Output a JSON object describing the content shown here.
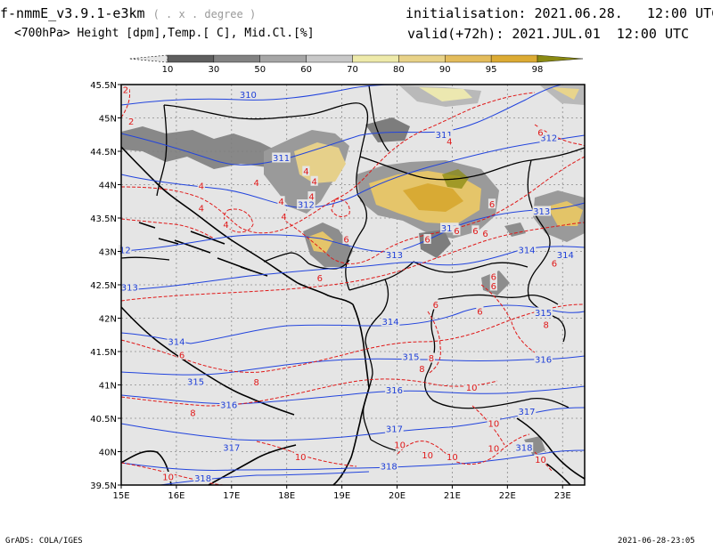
{
  "header": {
    "model": "f-nmmE_v3.9.1-e3km",
    "grid_note": "( . x . degree )",
    "fields": "<700hPa> Height [dpm],Temp.[ C], Mid.Cl.[%]",
    "init_label": "initialisation:",
    "init_value": "2021.06.28.   12:00 UTC",
    "valid_label": "valid(+72h):",
    "valid_value": "2021.JUL.01  12:00 UTC"
  },
  "footer": {
    "credit": "GrADS: COLA/IGES",
    "timestamp": "2021-06-28-23:05"
  },
  "colorbar": {
    "ticks": [
      "10",
      "30",
      "50",
      "60",
      "70",
      "80",
      "90",
      "95",
      "98"
    ],
    "colors": [
      "#e6e6e6",
      "#5f5f5f",
      "#828282",
      "#a6a6a6",
      "#c8c8c8",
      "#eeeaaa",
      "#e8d288",
      "#e3bc5c",
      "#dcab34",
      "#8a8a12"
    ]
  },
  "map": {
    "lon_labels": [
      "15E",
      "16E",
      "17E",
      "18E",
      "19E",
      "20E",
      "21E",
      "22E",
      "23E"
    ],
    "lat_labels": [
      "45.5N",
      "45N",
      "44.5N",
      "44N",
      "43.5N",
      "43N",
      "42.5N",
      "42N",
      "41.5N",
      "41N",
      "40.5N",
      "40N",
      "39.5N"
    ],
    "height_colour": "#1e3fd8",
    "temp_colour": "#e01818",
    "height_labels": [
      {
        "text": "310",
        "lon": 17.3,
        "lat": 45.35
      },
      {
        "text": "311",
        "lon": 17.9,
        "lat": 44.4
      },
      {
        "text": "311",
        "lon": 20.85,
        "lat": 44.75
      },
      {
        "text": "312",
        "lon": 22.75,
        "lat": 44.7
      },
      {
        "text": "312",
        "lon": 18.35,
        "lat": 43.7
      },
      {
        "text": "312",
        "lon": 20.95,
        "lat": 43.35
      },
      {
        "text": "12",
        "lon": 15.07,
        "lat": 43.02
      },
      {
        "text": "313",
        "lon": 22.62,
        "lat": 43.6
      },
      {
        "text": "313",
        "lon": 19.95,
        "lat": 42.95
      },
      {
        "text": "313",
        "lon": 15.15,
        "lat": 42.46
      },
      {
        "text": "314",
        "lon": 22.35,
        "lat": 43.02
      },
      {
        "text": "314",
        "lon": 23.05,
        "lat": 42.95
      },
      {
        "text": "314",
        "lon": 19.88,
        "lat": 41.95
      },
      {
        "text": "314",
        "lon": 16.0,
        "lat": 41.65
      },
      {
        "text": "315",
        "lon": 22.65,
        "lat": 42.08
      },
      {
        "text": "315",
        "lon": 20.25,
        "lat": 41.42
      },
      {
        "text": "315",
        "lon": 16.35,
        "lat": 41.05
      },
      {
        "text": "316",
        "lon": 22.65,
        "lat": 41.38
      },
      {
        "text": "316",
        "lon": 19.95,
        "lat": 40.92
      },
      {
        "text": "316",
        "lon": 16.95,
        "lat": 40.7
      },
      {
        "text": "317",
        "lon": 22.35,
        "lat": 40.6
      },
      {
        "text": "317",
        "lon": 19.95,
        "lat": 40.34
      },
      {
        "text": "317",
        "lon": 17.0,
        "lat": 40.06
      },
      {
        "text": "318",
        "lon": 22.3,
        "lat": 40.06
      },
      {
        "text": "318",
        "lon": 19.85,
        "lat": 39.78
      },
      {
        "text": "318",
        "lon": 16.48,
        "lat": 39.6
      }
    ],
    "temp_labels": [
      {
        "text": "2",
        "lon": 15.08,
        "lat": 45.42
      },
      {
        "text": "2",
        "lon": 15.18,
        "lat": 44.95
      },
      {
        "text": "4",
        "lon": 20.95,
        "lat": 44.65
      },
      {
        "text": "6",
        "lon": 22.6,
        "lat": 44.78
      },
      {
        "text": "4",
        "lon": 18.35,
        "lat": 44.2
      },
      {
        "text": "4",
        "lon": 17.45,
        "lat": 44.03
      },
      {
        "text": "4",
        "lon": 16.45,
        "lat": 43.98
      },
      {
        "text": "4",
        "lon": 16.45,
        "lat": 43.65
      },
      {
        "text": "4",
        "lon": 18.5,
        "lat": 44.05
      },
      {
        "text": "4",
        "lon": 18.45,
        "lat": 43.82
      },
      {
        "text": "4",
        "lon": 17.9,
        "lat": 43.75
      },
      {
        "text": "4",
        "lon": 17.95,
        "lat": 43.52
      },
      {
        "text": "4",
        "lon": 16.9,
        "lat": 43.4
      },
      {
        "text": "6",
        "lon": 21.72,
        "lat": 43.71
      },
      {
        "text": "6",
        "lon": 21.08,
        "lat": 43.31
      },
      {
        "text": "6",
        "lon": 21.42,
        "lat": 43.31
      },
      {
        "text": "6",
        "lon": 21.6,
        "lat": 43.27
      },
      {
        "text": "6",
        "lon": 20.55,
        "lat": 43.18
      },
      {
        "text": "6",
        "lon": 19.08,
        "lat": 43.18
      },
      {
        "text": "6",
        "lon": 18.6,
        "lat": 42.6
      },
      {
        "text": "6",
        "lon": 21.75,
        "lat": 42.62
      },
      {
        "text": "6",
        "lon": 21.75,
        "lat": 42.48
      },
      {
        "text": "6",
        "lon": 22.85,
        "lat": 42.82
      },
      {
        "text": "6",
        "lon": 20.7,
        "lat": 42.2
      },
      {
        "text": "6",
        "lon": 21.5,
        "lat": 42.1
      },
      {
        "text": "6",
        "lon": 16.1,
        "lat": 41.45
      },
      {
        "text": "8",
        "lon": 22.7,
        "lat": 41.9
      },
      {
        "text": "8",
        "lon": 20.62,
        "lat": 41.4
      },
      {
        "text": "8",
        "lon": 20.45,
        "lat": 41.24
      },
      {
        "text": "8",
        "lon": 17.45,
        "lat": 41.04
      },
      {
        "text": "8",
        "lon": 16.3,
        "lat": 40.58
      },
      {
        "text": "10",
        "lon": 21.35,
        "lat": 40.96
      },
      {
        "text": "10",
        "lon": 21.75,
        "lat": 40.42
      },
      {
        "text": "10",
        "lon": 20.05,
        "lat": 40.1
      },
      {
        "text": "10",
        "lon": 20.55,
        "lat": 39.95
      },
      {
        "text": "10",
        "lon": 21.0,
        "lat": 39.92
      },
      {
        "text": "10",
        "lon": 21.75,
        "lat": 40.05
      },
      {
        "text": "10",
        "lon": 22.6,
        "lat": 39.88
      },
      {
        "text": "10",
        "lon": 18.25,
        "lat": 39.92
      },
      {
        "text": "10",
        "lon": 15.85,
        "lat": 39.62
      }
    ]
  }
}
